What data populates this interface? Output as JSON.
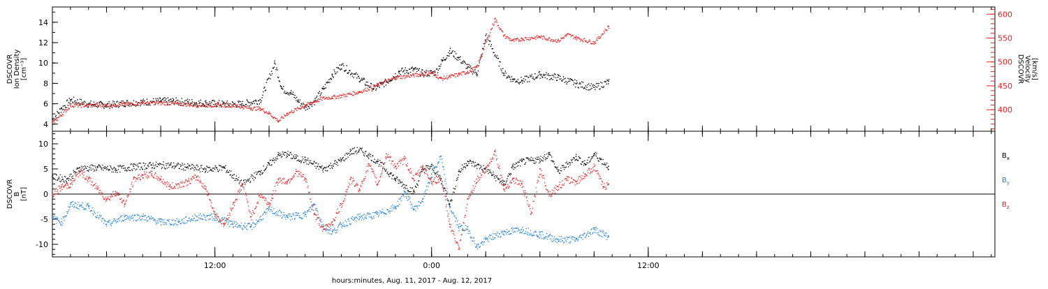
{
  "chart_data": [
    {
      "type": "scatter",
      "panel": "top",
      "ylabel_left": [
        "DSCOVR",
        "Ion Density",
        "[cm⁻³]"
      ],
      "ylabel_right": [
        "DSCOVR",
        "Velocity",
        "[km/s]"
      ],
      "yleft_range": [
        3.3,
        15.5
      ],
      "yleft_ticks": [
        4,
        6,
        8,
        10,
        12,
        14
      ],
      "yright_range": [
        355,
        615
      ],
      "yright_ticks": [
        400,
        450,
        500,
        550,
        600
      ],
      "x_range_hours": [
        3,
        55.2
      ],
      "series": [
        {
          "name": "Ion Density",
          "axis": "left",
          "color": "#000000",
          "x": [
            3.0,
            3.5,
            4.0,
            5.0,
            6.0,
            7.0,
            8.0,
            9.0,
            9.7,
            10.5,
            11.5,
            12.5,
            13.5,
            14.5,
            15.3,
            15.7,
            16.2,
            16.6,
            17.0,
            17.5,
            18.0,
            18.5,
            19.0,
            20.0,
            20.8,
            21.5,
            22.2,
            23.0,
            23.5,
            24.2,
            24.6,
            25.0,
            25.5,
            26.0,
            26.5,
            27.0,
            28.0,
            28.5,
            29.0,
            30.0,
            31.0,
            32.0,
            33.0,
            33.8
          ],
          "y": [
            4.5,
            5.6,
            6.4,
            6.0,
            5.9,
            6.1,
            6.2,
            6.3,
            6.3,
            6.2,
            6.1,
            6.0,
            6.0,
            6.4,
            10.0,
            7.5,
            7.1,
            6.3,
            5.7,
            6.3,
            7.5,
            8.9,
            9.8,
            8.5,
            7.5,
            8.2,
            9.2,
            9.4,
            9.0,
            9.1,
            10.3,
            11.2,
            10.5,
            9.6,
            9.0,
            12.7,
            9.0,
            8.4,
            8.3,
            8.9,
            8.6,
            8.0,
            7.6,
            8.2
          ]
        },
        {
          "name": "Velocity",
          "axis": "right",
          "color": "#e82020",
          "x": [
            3.0,
            4.0,
            5.0,
            6.0,
            7.0,
            8.0,
            9.0,
            10.0,
            11.0,
            12.0,
            13.0,
            14.0,
            14.5,
            15.0,
            15.5,
            16.0,
            17.0,
            17.5,
            18.0,
            18.5,
            19.0,
            20.0,
            21.0,
            22.0,
            23.0,
            24.0,
            24.5,
            25.0,
            25.5,
            26.0,
            26.5,
            27.0,
            27.5,
            28.0,
            28.5,
            29.0,
            30.0,
            31.0,
            31.5,
            32.0,
            33.0,
            33.8
          ],
          "y": [
            373,
            410,
            410,
            410,
            413,
            415,
            415,
            413,
            410,
            410,
            410,
            404,
            403,
            393,
            377,
            393,
            410,
            418,
            425,
            427,
            430,
            438,
            453,
            468,
            473,
            478,
            466,
            470,
            475,
            480,
            490,
            543,
            590,
            555,
            545,
            549,
            553,
            545,
            558,
            551,
            541,
            575
          ]
        }
      ]
    },
    {
      "type": "scatter",
      "panel": "bottom",
      "ylabel_left": [
        "DSCOVR",
        "B",
        "[nT]"
      ],
      "y_range": [
        -12.5,
        12.5
      ],
      "y_ticks": [
        -10,
        -5,
        0,
        5,
        10
      ],
      "x_range_hours": [
        3,
        55.2
      ],
      "legend": [
        {
          "main": "B",
          "sub": "x",
          "color": "#000000"
        },
        {
          "main": "B",
          "sub": "y",
          "color": "#1f7fd6"
        },
        {
          "main": "B",
          "sub": "z",
          "color": "#e82020"
        }
      ],
      "series": [
        {
          "name": "Bx",
          "color": "#000000",
          "x": [
            3.0,
            3.8,
            4.5,
            5.5,
            6.5,
            7.5,
            8.5,
            9.5,
            10.5,
            11.5,
            12.5,
            13.5,
            14.5,
            15.0,
            15.5,
            16.0,
            16.5,
            17.0,
            18.0,
            19.0,
            19.5,
            20.0,
            20.5,
            21.0,
            22.0,
            23.0,
            23.5,
            24.0,
            24.5,
            25.0,
            25.5,
            26.0,
            27.0,
            28.0,
            28.5,
            29.0,
            30.0,
            30.5,
            31.0,
            32.0,
            32.5,
            33.0,
            33.8
          ],
          "y": [
            3.5,
            3.0,
            5.2,
            5.3,
            5.0,
            5.5,
            5.8,
            5.8,
            5.4,
            5.0,
            5.3,
            2.0,
            4.5,
            6.0,
            7.8,
            8.0,
            7.2,
            6.8,
            5.0,
            6.8,
            8.5,
            8.8,
            7.8,
            6.5,
            3.0,
            0.5,
            5.0,
            5.5,
            3.0,
            -2.0,
            4.5,
            6.5,
            5.0,
            2.0,
            5.5,
            6.5,
            7.0,
            8.0,
            4.5,
            7.5,
            6.0,
            8.0,
            5.5
          ]
        },
        {
          "name": "By",
          "color": "#1f7fd6",
          "x": [
            3.0,
            3.5,
            4.0,
            5.0,
            6.0,
            7.0,
            8.0,
            9.0,
            10.0,
            11.0,
            12.0,
            13.0,
            14.0,
            15.0,
            16.0,
            17.0,
            17.5,
            18.0,
            18.5,
            19.0,
            20.0,
            21.0,
            22.0,
            22.5,
            23.0,
            23.5,
            24.0,
            24.5,
            25.0,
            25.5,
            26.0,
            26.5,
            27.0,
            28.0,
            29.0,
            30.0,
            31.0,
            32.0,
            33.0,
            33.8
          ],
          "y": [
            -4.8,
            -5.5,
            -2.0,
            -2.5,
            -6.0,
            -4.5,
            -4.5,
            -5.5,
            -5.5,
            -4.5,
            -4.5,
            -6.0,
            -6.5,
            -3.0,
            -4.5,
            -4.0,
            -2.0,
            -6.5,
            -7.5,
            -6.0,
            -4.5,
            -4.0,
            -2.5,
            0.5,
            -3.0,
            -1.0,
            4.0,
            7.5,
            -2.5,
            -6.5,
            -7.0,
            -10.5,
            -9.0,
            -7.5,
            -7.0,
            -8.0,
            -9.0,
            -9.0,
            -7.0,
            -8.5
          ]
        },
        {
          "name": "Bz",
          "color": "#e82020",
          "x": [
            3.0,
            3.5,
            4.0,
            4.5,
            5.0,
            5.5,
            6.0,
            6.5,
            7.0,
            7.5,
            8.0,
            8.5,
            9.0,
            9.5,
            10.0,
            10.5,
            11.0,
            11.5,
            12.0,
            12.5,
            13.0,
            13.5,
            14.0,
            14.5,
            15.0,
            15.5,
            16.0,
            16.5,
            17.0,
            17.5,
            18.0,
            18.5,
            19.0,
            19.5,
            20.0,
            20.5,
            21.0,
            21.5,
            22.0,
            22.5,
            23.0,
            23.5,
            24.0,
            24.5,
            25.0,
            25.5,
            26.0,
            26.5,
            27.0,
            27.5,
            28.0,
            28.5,
            29.0,
            29.5,
            30.0,
            30.5,
            31.0,
            31.5,
            32.0,
            32.5,
            33.0,
            33.5,
            33.8
          ],
          "y": [
            0.0,
            1.5,
            2.0,
            4.5,
            3.0,
            1.0,
            -1.0,
            0.5,
            -2.0,
            3.0,
            3.8,
            4.0,
            3.0,
            1.5,
            2.0,
            2.5,
            3.5,
            1.0,
            -4.0,
            -6.0,
            -2.0,
            2.0,
            -4.5,
            0.0,
            -2.0,
            3.0,
            2.5,
            4.5,
            3.0,
            -4.0,
            -7.0,
            -5.5,
            -2.0,
            3.0,
            1.0,
            6.0,
            2.0,
            8.0,
            5.5,
            7.0,
            3.0,
            5.5,
            2.5,
            3.0,
            -6.0,
            -11.0,
            -1.0,
            3.0,
            5.0,
            8.5,
            1.0,
            3.0,
            2.0,
            -4.0,
            5.0,
            0.0,
            1.5,
            3.0,
            2.5,
            4.0,
            5.5,
            1.5,
            2.0
          ]
        }
      ]
    }
  ],
  "x_axis": {
    "tick_labels": [
      {
        "hour": 12,
        "label": "12:00"
      },
      {
        "hour": 24,
        "label": "0:00"
      },
      {
        "hour": 36,
        "label": "12:00"
      }
    ],
    "title": "hours:minutes, Aug. 11, 2017 - Aug. 12, 2017"
  }
}
